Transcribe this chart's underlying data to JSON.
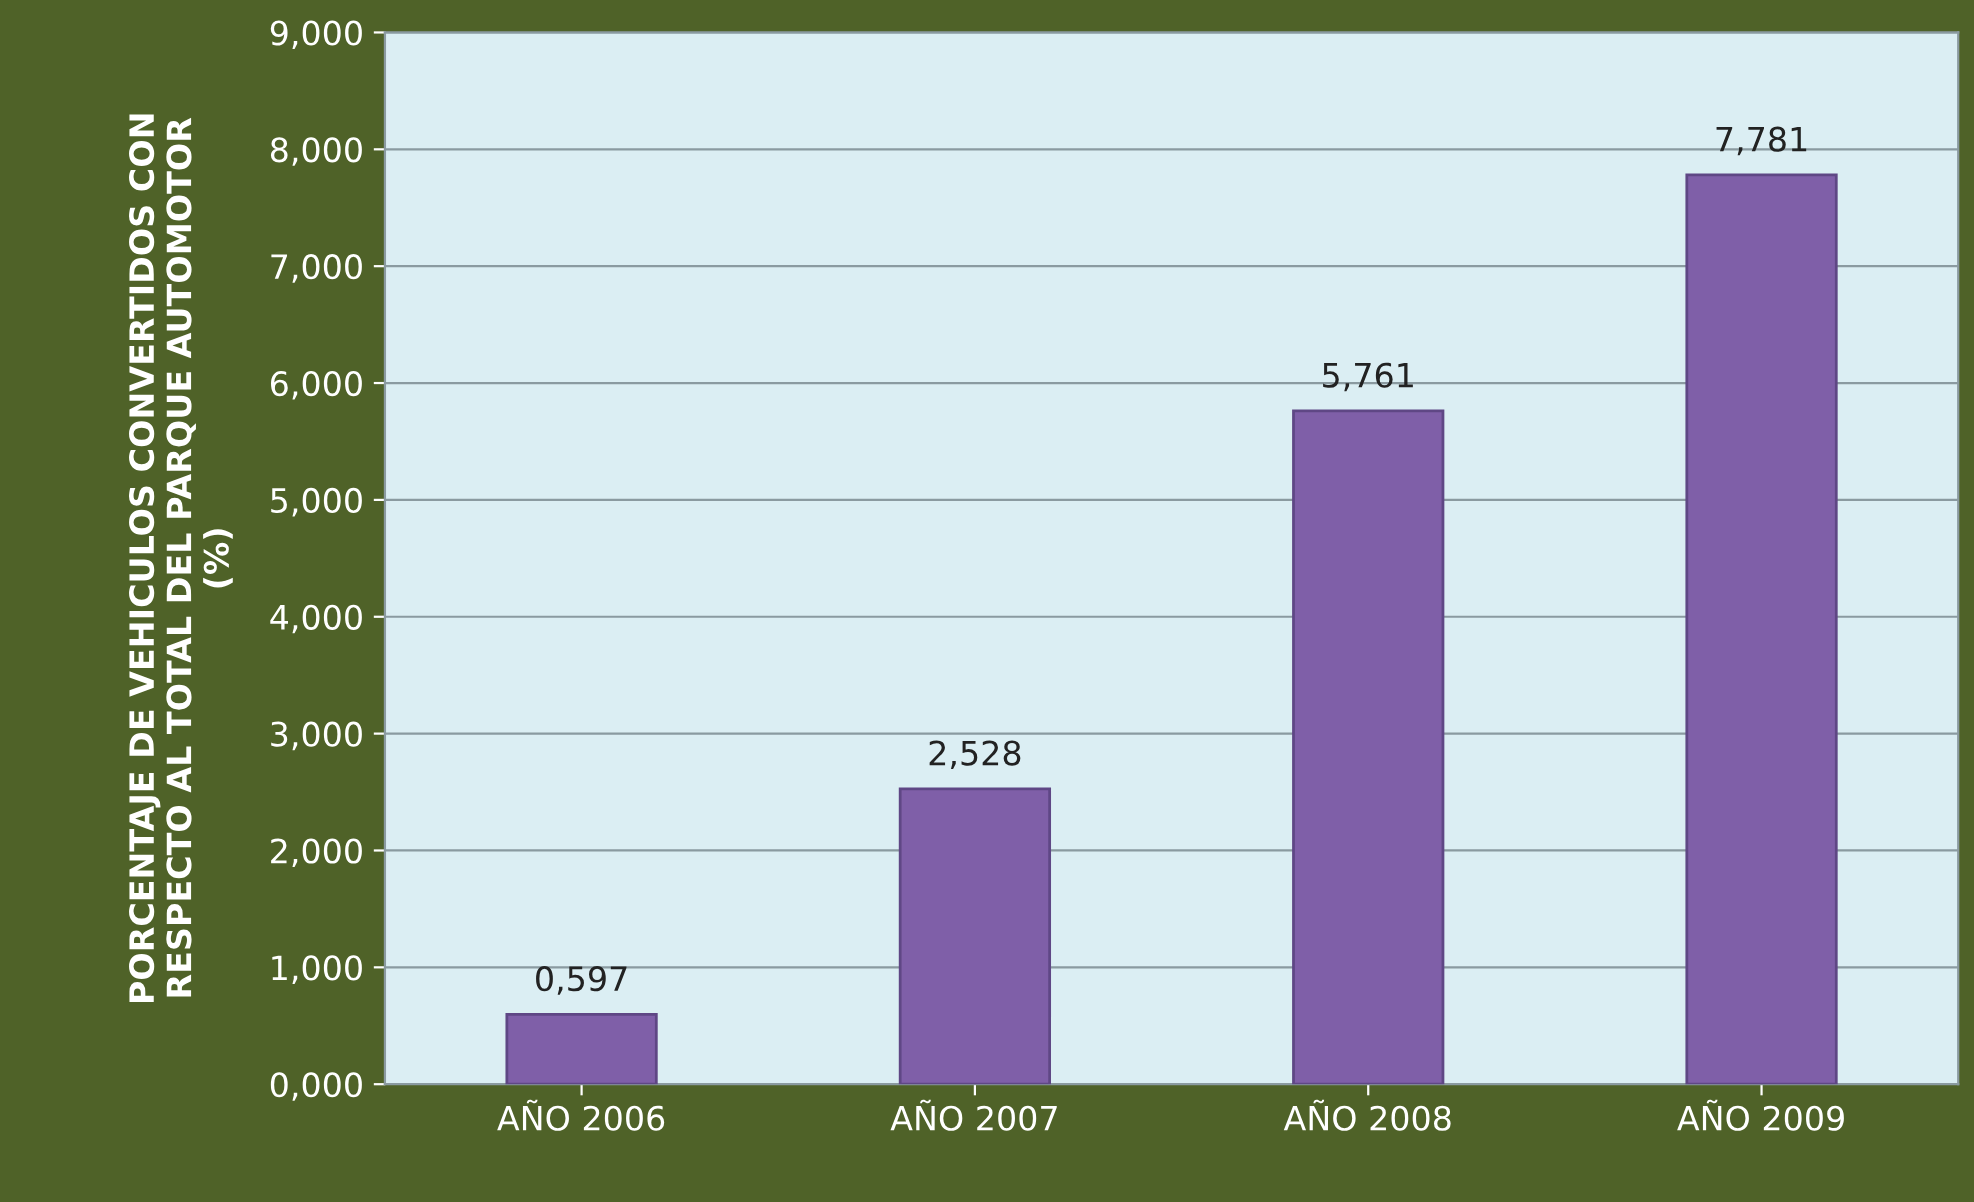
{
  "chart_data": {
    "type": "bar",
    "ylabel": "PORCENTAJE DE VEHICULOS CONVERTIDOS CON\nRESPECTO AL TOTAL DEL PARQUE AUTOMOTOR\n(%)",
    "categories": [
      "AÑO 2006",
      "AÑO 2007",
      "AÑO 2008",
      "AÑO 2009"
    ],
    "values": [
      0.597,
      2.528,
      5.761,
      7.781
    ],
    "value_labels": [
      "0,597",
      "2,528",
      "5,761",
      "7,781"
    ],
    "color": "#7f5fa8",
    "ylim": [
      0,
      9
    ],
    "yticks": [
      {
        "value": 0,
        "label": "0,000"
      },
      {
        "value": 1,
        "label": "1,000"
      },
      {
        "value": 2,
        "label": "2,000"
      },
      {
        "value": 3,
        "label": "3,000"
      },
      {
        "value": 4,
        "label": "4,000"
      },
      {
        "value": 5,
        "label": "5,000"
      },
      {
        "value": 6,
        "label": "6,000"
      },
      {
        "value": 7,
        "label": "7,000"
      },
      {
        "value": 8,
        "label": "8,000"
      },
      {
        "value": 9,
        "label": "9,000"
      }
    ],
    "grid": "y",
    "legend": false
  }
}
